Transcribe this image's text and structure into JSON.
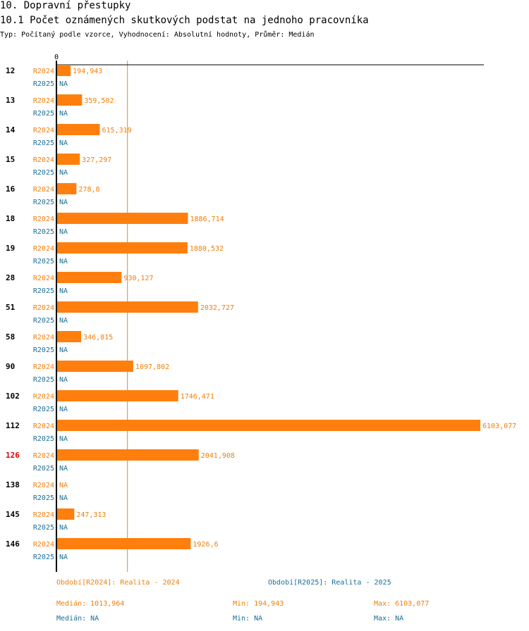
{
  "heading": "10. Dopravní přestupky",
  "subheading": "10.1 Počet oznámených skutkových podstat na jednoho pracovníka",
  "type_line": "Typ: Počítaný podle vzorce, Vyhodnocení: Absolutní hodnoty, Průměr: Medián",
  "colors": {
    "r2024": "#ff7f0e",
    "r2024_text": "#f07f0a",
    "r2025": "#1a6e96",
    "highlight": "#e00000",
    "median_line": "#d98a2b"
  },
  "chart_data": {
    "type": "bar",
    "orientation": "horizontal",
    "axis_zero_label": "0",
    "xlim": [
      0,
      6103.077
    ],
    "median_marker": 1013.964,
    "categories": [
      "12",
      "13",
      "14",
      "15",
      "16",
      "18",
      "19",
      "28",
      "51",
      "58",
      "90",
      "102",
      "112",
      "126",
      "138",
      "145",
      "146"
    ],
    "highlight_category": "126",
    "series": [
      {
        "name": "R2024",
        "values": [
          194.943,
          359.502,
          615.319,
          327.297,
          278.8,
          1886.714,
          1880.532,
          930.127,
          2032.727,
          346.815,
          1097.802,
          1746.471,
          6103.077,
          2041.908,
          null,
          247.313,
          1926.6
        ],
        "labels": [
          "194,943",
          "359,502",
          "615,319",
          "327,297",
          "278,8",
          "1886,714",
          "1880,532",
          "930,127",
          "2032,727",
          "346,815",
          "1097,802",
          "1746,471",
          "6103,077",
          "2041,908",
          "NA",
          "247,313",
          "1926,6"
        ]
      },
      {
        "name": "R2025",
        "values": [
          null,
          null,
          null,
          null,
          null,
          null,
          null,
          null,
          null,
          null,
          null,
          null,
          null,
          null,
          null,
          null,
          null
        ],
        "labels": [
          "NA",
          "NA",
          "NA",
          "NA",
          "NA",
          "NA",
          "NA",
          "NA",
          "NA",
          "NA",
          "NA",
          "NA",
          "NA",
          "NA",
          "NA",
          "NA",
          "NA"
        ]
      }
    ]
  },
  "legend": {
    "r2024": "Období[R2024]: Realita - 2024",
    "r2025": "Období[R2025]: Realita - 2025"
  },
  "stats": {
    "r2024": {
      "median": "Medián: 1013,964",
      "min": "Min: 194,943",
      "max": "Max: 6103,077"
    },
    "r2025": {
      "median": "Medián: NA",
      "min": "Min: NA",
      "max": "Max: NA"
    }
  }
}
